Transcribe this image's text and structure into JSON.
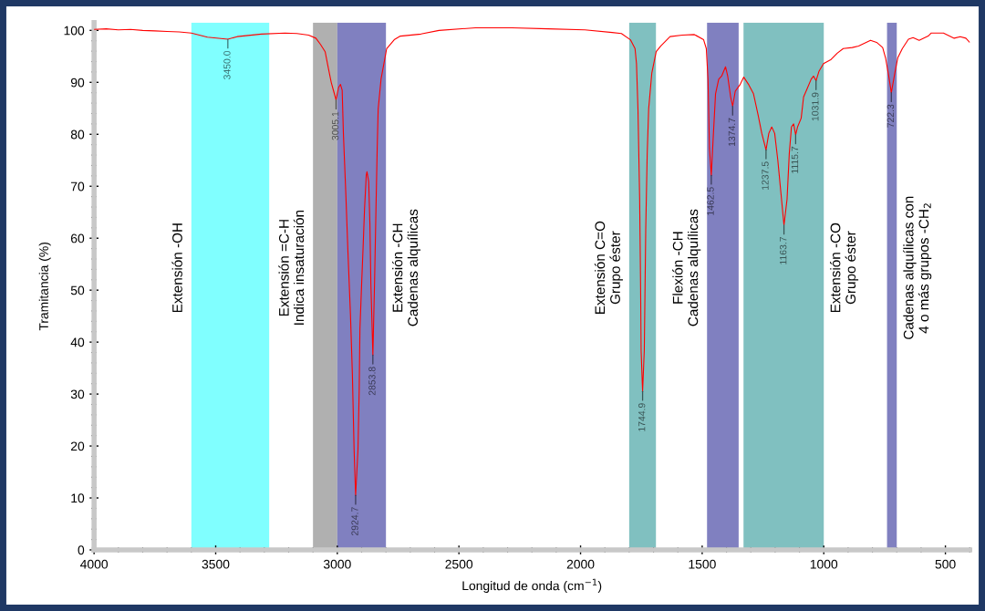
{
  "chart_data": {
    "type": "line",
    "xlabel": "Longitud de onda (cm$^{−1}$)",
    "ylabel": "Tramitancia (%)",
    "xlim": [
      4000,
      400
    ],
    "ylim": [
      0,
      101.5
    ],
    "xticks": [
      4000,
      3500,
      3000,
      2500,
      2000,
      1500,
      1000,
      500
    ],
    "yticks": [
      0,
      10,
      20,
      30,
      40,
      50,
      60,
      70,
      80,
      90,
      100
    ],
    "x": [
      4000,
      3950,
      3900,
      3850,
      3800,
      3750,
      3700,
      3650,
      3600,
      3534,
      3450,
      3412,
      3312,
      3215,
      3166,
      3118,
      3088,
      3069,
      3050,
      3038,
      3025,
      3015,
      3005.1,
      2995,
      2987,
      2980,
      2975,
      2965,
      2956,
      2946,
      2938,
      2931,
      2924.7,
      2915,
      2910,
      2907,
      2900,
      2894,
      2888,
      2881,
      2878,
      2871,
      2866,
      2862,
      2856,
      2853.8,
      2847,
      2841,
      2836,
      2832,
      2820,
      2797,
      2766,
      2741,
      2656,
      2582,
      2432,
      2282,
      2133,
      1982,
      1870,
      1832,
      1795,
      1776,
      1770,
      1764,
      1757,
      1753,
      1751,
      1747,
      1744.9,
      1738,
      1732,
      1726,
      1720,
      1707,
      1689,
      1670,
      1645,
      1632,
      1582,
      1532,
      1494,
      1483,
      1476,
      1470,
      1462.5,
      1455,
      1445,
      1432,
      1420,
      1404,
      1395,
      1383,
      1374.7,
      1364,
      1345,
      1329,
      1308,
      1289,
      1270,
      1255,
      1237.5,
      1226,
      1214,
      1202,
      1189,
      1176,
      1163.7,
      1151,
      1142,
      1133,
      1124,
      1115.7,
      1108,
      1093,
      1083,
      1070,
      1052,
      1042,
      1031.9,
      1020,
      1001,
      970,
      945,
      920,
      883,
      857,
      808,
      783,
      758,
      746,
      733,
      722.3,
      708,
      696,
      677,
      652,
      633,
      608,
      571,
      558,
      508,
      464,
      439,
      416,
      400
    ],
    "series": [
      {
        "color": "#ff0000",
        "values": [
          100.2,
          100.3,
          100.1,
          100.2,
          100.0,
          99.9,
          99.8,
          99.7,
          99.5,
          98.7,
          98.3,
          98.8,
          99.3,
          99.5,
          99.4,
          99.1,
          98.5,
          97.3,
          95.9,
          93.0,
          90.0,
          88.3,
          86.6,
          89.0,
          89.6,
          88.5,
          80.2,
          68.6,
          57.0,
          45.4,
          33.8,
          19.3,
          10.5,
          19.3,
          30.9,
          42.5,
          51.2,
          58.2,
          65.7,
          72.1,
          72.8,
          70.9,
          62.8,
          51.2,
          41.3,
          37.5,
          51.2,
          65.7,
          77.3,
          84.9,
          90.7,
          96.5,
          98.2,
          98.9,
          99.3,
          100.0,
          100.5,
          100.5,
          100.3,
          100.1,
          99.6,
          99.4,
          98.2,
          96.5,
          93.6,
          84.9,
          67.5,
          50.0,
          38.4,
          33.2,
          30.5,
          38.4,
          61.6,
          76.2,
          84.9,
          91.8,
          95.9,
          97.0,
          98.2,
          98.8,
          99.1,
          99.2,
          98.2,
          96.5,
          90.6,
          77.3,
          72.1,
          79.0,
          87.8,
          90.6,
          91.2,
          93.0,
          91.2,
          87.2,
          85.4,
          88.3,
          89.5,
          91.0,
          89.5,
          87.8,
          83.7,
          80.2,
          77.0,
          80.2,
          81.4,
          80.2,
          75.0,
          68.6,
          62.5,
          67.5,
          76.2,
          81.4,
          82.0,
          79.9,
          81.4,
          83.1,
          87.2,
          88.6,
          90.6,
          91.2,
          90.3,
          92.1,
          93.6,
          94.4,
          95.6,
          96.5,
          96.7,
          97.0,
          98.1,
          97.7,
          96.7,
          94.7,
          91.2,
          88.0,
          91.8,
          94.7,
          96.5,
          98.3,
          98.6,
          98.1,
          98.9,
          99.5,
          99.5,
          98.5,
          98.8,
          98.5,
          97.7
        ]
      }
    ],
    "bands": [
      {
        "axis": "x",
        "from": 3600,
        "to": 3280,
        "color": "#80ffff",
        "label": "Extensión -OH"
      },
      {
        "axis": "x",
        "from": 3100,
        "to": 3000,
        "color": "#b0b0b0",
        "label": "Extensión =C-H\nIndica insaturación"
      },
      {
        "axis": "x",
        "from": 3000,
        "to": 2800,
        "color": "#8080c0",
        "label": "Extensión -CH\nCadenas alquílicas"
      },
      {
        "axis": "x",
        "from": 1800,
        "to": 1690,
        "color": "#80c0c0",
        "label": "Extensión C=O\nGrupo éster"
      },
      {
        "axis": "x",
        "from": 1480,
        "to": 1350,
        "color": "#8080c0",
        "label": "Flexión -CH\nCadenas alquílicas"
      },
      {
        "axis": "x",
        "from": 1330,
        "to": 1000,
        "color": "#80c0c0",
        "label": "Extensión -CO\nGrupo éster"
      },
      {
        "axis": "x",
        "from": 740,
        "to": 700,
        "color": "#8080c0",
        "label": "Cadenas alquílicas con\n4 o más grupos -CH$_{2}$"
      }
    ],
    "annotations": [
      {
        "text": "3450.0",
        "x": 3450.0,
        "y": 98.3
      },
      {
        "text": "3005.1",
        "x": 3005.1,
        "y": 86.6
      },
      {
        "text": "2924.7",
        "x": 2924.7,
        "y": 10.5
      },
      {
        "text": "2853.8",
        "x": 2853.8,
        "y": 37.5
      },
      {
        "text": "1744.9",
        "x": 1744.9,
        "y": 30.5
      },
      {
        "text": "1462.5",
        "x": 1462.5,
        "y": 72.1
      },
      {
        "text": "1374.7",
        "x": 1374.7,
        "y": 85.4
      },
      {
        "text": "1237.5",
        "x": 1237.5,
        "y": 77.0
      },
      {
        "text": "1163.7",
        "x": 1163.7,
        "y": 62.5
      },
      {
        "text": "1115.7",
        "x": 1115.7,
        "y": 79.9
      },
      {
        "text": "1031.9",
        "x": 1031.9,
        "y": 90.3
      },
      {
        "text": "722.3",
        "x": 722.3,
        "y": 88.0
      }
    ],
    "marker": "none",
    "line_style": "solid"
  }
}
